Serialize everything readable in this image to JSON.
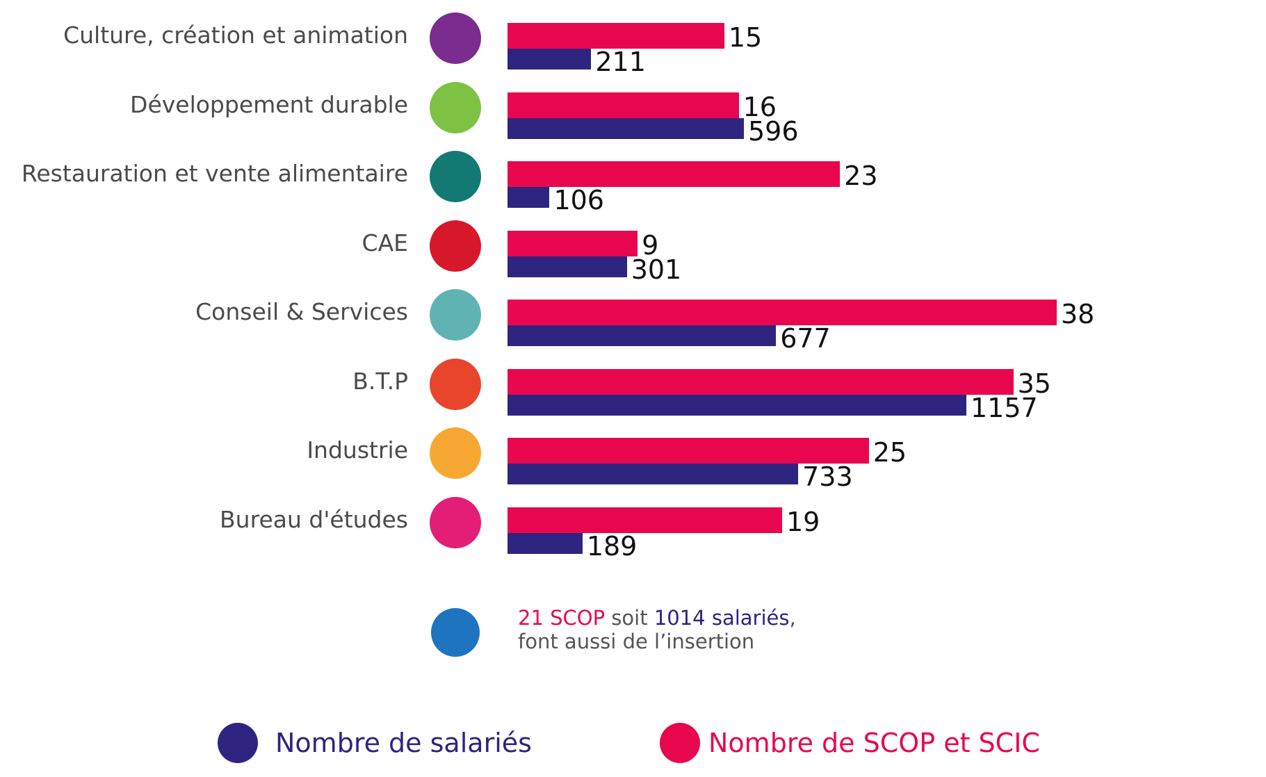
{
  "chart_data": {
    "type": "bar",
    "orientation": "horizontal",
    "categories": [
      "Culture, création et animation",
      "Développement durable",
      "Restauration et vente alimentaire",
      "CAE",
      "Conseil & Services",
      "B.T.P",
      "Industrie",
      "Bureau d'études"
    ],
    "icons": [
      "palette-music-icon",
      "leaf-icon",
      "glass-fork-icon",
      "house-sun-icon",
      "speech-bubble-icon",
      "crane-icon",
      "factory-icon",
      "gear-search-icon"
    ],
    "icon_colors": [
      "#7a2c8f",
      "#7dc242",
      "#127a72",
      "#d7182a",
      "#5fb3b3",
      "#e8452c",
      "#f7a833",
      "#e31e77"
    ],
    "series": [
      {
        "name": "Nombre de SCOP et SCIC",
        "color": "#e8074f",
        "values": [
          15,
          16,
          23,
          9,
          38,
          35,
          25,
          19
        ]
      },
      {
        "name": "Nombre de salariés",
        "color": "#2e2480",
        "values": [
          211,
          596,
          106,
          301,
          677,
          1157,
          733,
          189
        ]
      }
    ],
    "value_labels": {
      "scop": [
        "15",
        "16",
        "23",
        "9",
        "38",
        "35",
        "25",
        "19"
      ],
      "salaries": [
        "211",
        "596",
        "106",
        "301",
        "677",
        "1157",
        "733",
        "189"
      ]
    },
    "legend": [
      "Nombre de salariés",
      "Nombre de SCOP et SCIC"
    ],
    "legend_position": "bottom",
    "grid": false
  },
  "note": {
    "icon": "people-insertion-icon",
    "icon_color": "#1f74c0",
    "part1": "21 SCOP",
    "part2": " soit ",
    "part3": "1014 salariés",
    "part4": ",",
    "line2": "font aussi de l’insertion"
  },
  "legend_items": {
    "salaries": {
      "label": "Nombre de salariés",
      "color": "#2e2480"
    },
    "scop": {
      "label": "Nombre de SCOP et SCIC",
      "color": "#e8074f"
    }
  }
}
